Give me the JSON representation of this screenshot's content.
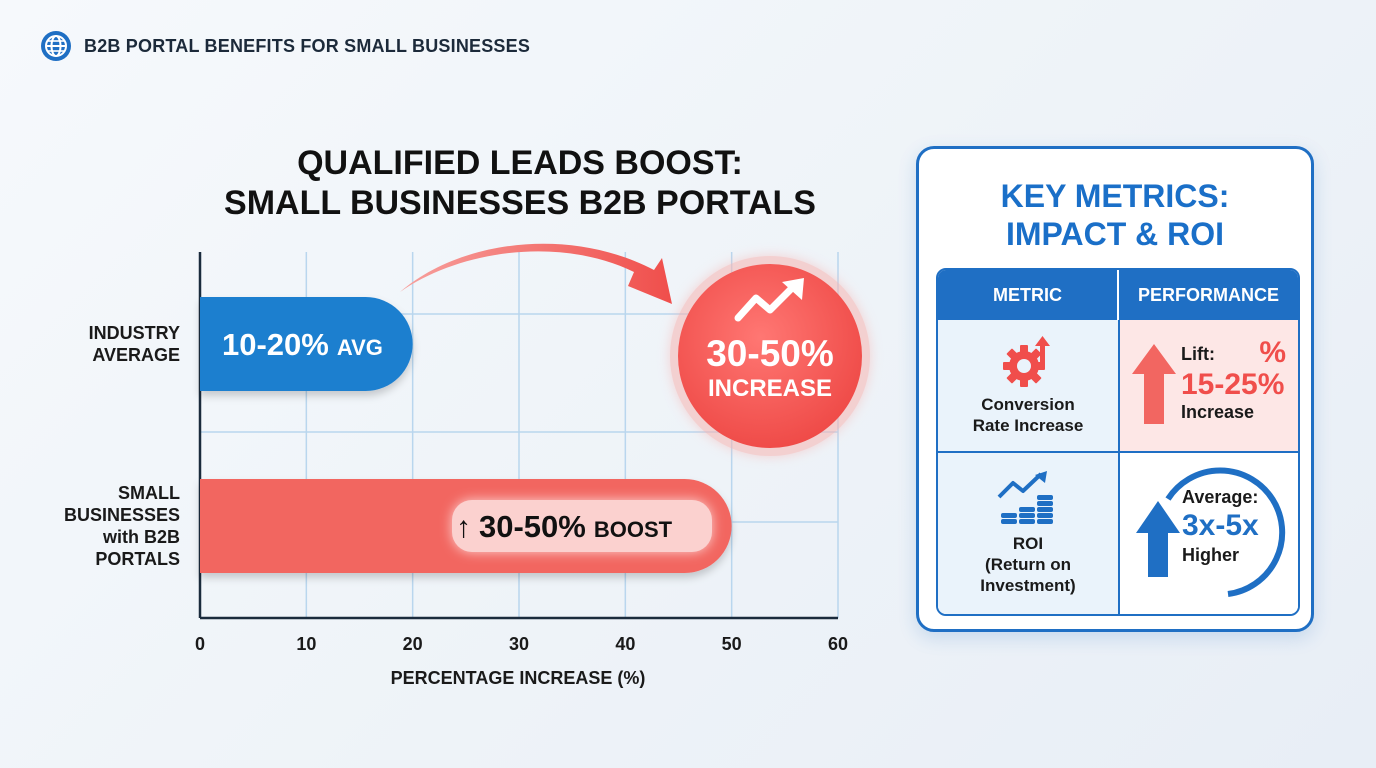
{
  "header": {
    "title": "B2B PORTAL BENEFITS FOR SMALL BUSINESSES",
    "icon": "globe-icon"
  },
  "chart_title": {
    "line1": "QUALIFIED LEADS BOOST:",
    "line2": "SMALL BUSINESSES B2B PORTALS"
  },
  "chart_data": {
    "type": "bar",
    "orientation": "horizontal",
    "title": "QUALIFIED LEADS BOOST: SMALL BUSINESSES B2B PORTALS",
    "categories": [
      "INDUSTRY AVERAGE",
      "SMALL BUSINESSES with B2B PORTALS"
    ],
    "category_lines": [
      [
        "INDUSTRY",
        "AVERAGE"
      ],
      [
        "SMALL",
        "BUSINESSES",
        "with B2B",
        "PORTALS"
      ]
    ],
    "values": [
      20,
      50
    ],
    "ranges": [
      [
        10,
        20
      ],
      [
        30,
        50
      ]
    ],
    "bar_labels": [
      {
        "main": "10-20%",
        "suffix": "AVG"
      },
      {
        "arrow": "↑",
        "main": "30-50%",
        "suffix": "BOOST"
      }
    ],
    "colors": [
      "#1f7fcf",
      "#f26661"
    ],
    "xlabel": "PERCENTAGE INCREASE (%)",
    "ylabel": "",
    "xlim": [
      0,
      60
    ],
    "xticks": [
      0,
      10,
      20,
      30,
      40,
      50,
      60
    ],
    "grid": true,
    "annotation": {
      "main": "30-50%",
      "sub": "INCREASE",
      "color": "#f04e4b"
    }
  },
  "panel": {
    "title_line1": "KEY METRICS:",
    "title_line2": "IMPACT & ROI",
    "columns": [
      "METRIC",
      "PERFORMANCE"
    ],
    "rows": [
      {
        "metric_lines": [
          "Conversion",
          "Rate Increase"
        ],
        "metric_icon": "gear-arrow-icon",
        "perf_label": "Lift:",
        "perf_value": "15-25%",
        "perf_suffix": "Increase",
        "perf_symbol": "%"
      },
      {
        "metric_lines": [
          "ROI",
          "(Return on",
          "Investment)"
        ],
        "metric_icon": "coins-growth-icon",
        "perf_label": "Average:",
        "perf_value": "3x-5x",
        "perf_suffix": "Higher"
      }
    ],
    "colors": {
      "accent": "#1f6fc4",
      "red": "#f04e4b",
      "red_bg": "#fde7e6",
      "blue_bg": "#eaf3fb"
    }
  }
}
